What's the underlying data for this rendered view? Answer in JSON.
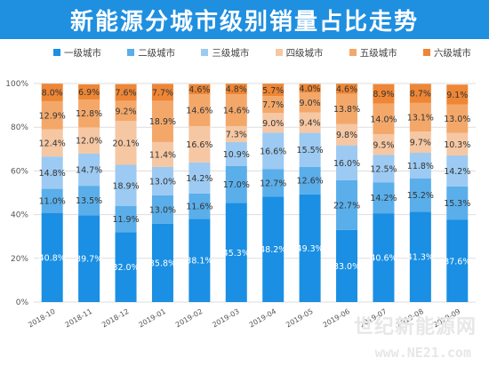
{
  "header": {
    "title": "新能源分城市级别销量占比走势"
  },
  "watermark": {
    "text": "世纪新能源网",
    "url": "www.NE21.com"
  },
  "colors": {
    "series": [
      "#1a8fe3",
      "#5aaeea",
      "#9ccaf2",
      "#f6c7a3",
      "#f3a86a",
      "#ee8636"
    ],
    "labels": [
      "#ffffff",
      "#333333",
      "#333333",
      "#333333",
      "#333333",
      "#333333"
    ]
  },
  "chart_data": {
    "type": "bar",
    "stacked": true,
    "categories": [
      "2018-10",
      "2018-11",
      "2018-12",
      "2019-01",
      "2019-02",
      "2019-03",
      "2019-04",
      "2019-05",
      "2019-06",
      "2019-07",
      "2019-08",
      "2019-09"
    ],
    "series": [
      {
        "name": "一级城市",
        "values": [
          40.8,
          39.7,
          32.0,
          35.8,
          38.1,
          45.3,
          48.2,
          49.3,
          33.0,
          40.6,
          41.3,
          37.6
        ]
      },
      {
        "name": "二级城市",
        "values": [
          11.0,
          13.5,
          11.9,
          13.0,
          11.6,
          17.0,
          12.7,
          12.6,
          22.7,
          14.2,
          15.2,
          15.3
        ]
      },
      {
        "name": "三级城市",
        "values": [
          14.8,
          14.7,
          18.9,
          13.0,
          14.2,
          10.9,
          16.6,
          15.5,
          16.0,
          12.5,
          11.8,
          14.2
        ]
      },
      {
        "name": "四级城市",
        "values": [
          12.4,
          12.0,
          20.1,
          11.4,
          16.6,
          7.3,
          9.0,
          9.4,
          9.8,
          9.5,
          9.7,
          10.3
        ]
      },
      {
        "name": "五级城市",
        "values": [
          12.9,
          12.8,
          9.2,
          18.9,
          14.6,
          14.6,
          7.7,
          9.0,
          13.8,
          14.0,
          13.1,
          13.0
        ]
      },
      {
        "name": "六级城市",
        "values": [
          8.0,
          6.9,
          7.6,
          7.7,
          4.6,
          4.8,
          5.7,
          4.0,
          4.6,
          8.9,
          8.7,
          9.1
        ]
      }
    ],
    "ylim": [
      0,
      100
    ],
    "yticks": [
      "0%",
      "20%",
      "40%",
      "60%",
      "80%",
      "100%"
    ],
    "grid": true,
    "legend_position": "top"
  }
}
